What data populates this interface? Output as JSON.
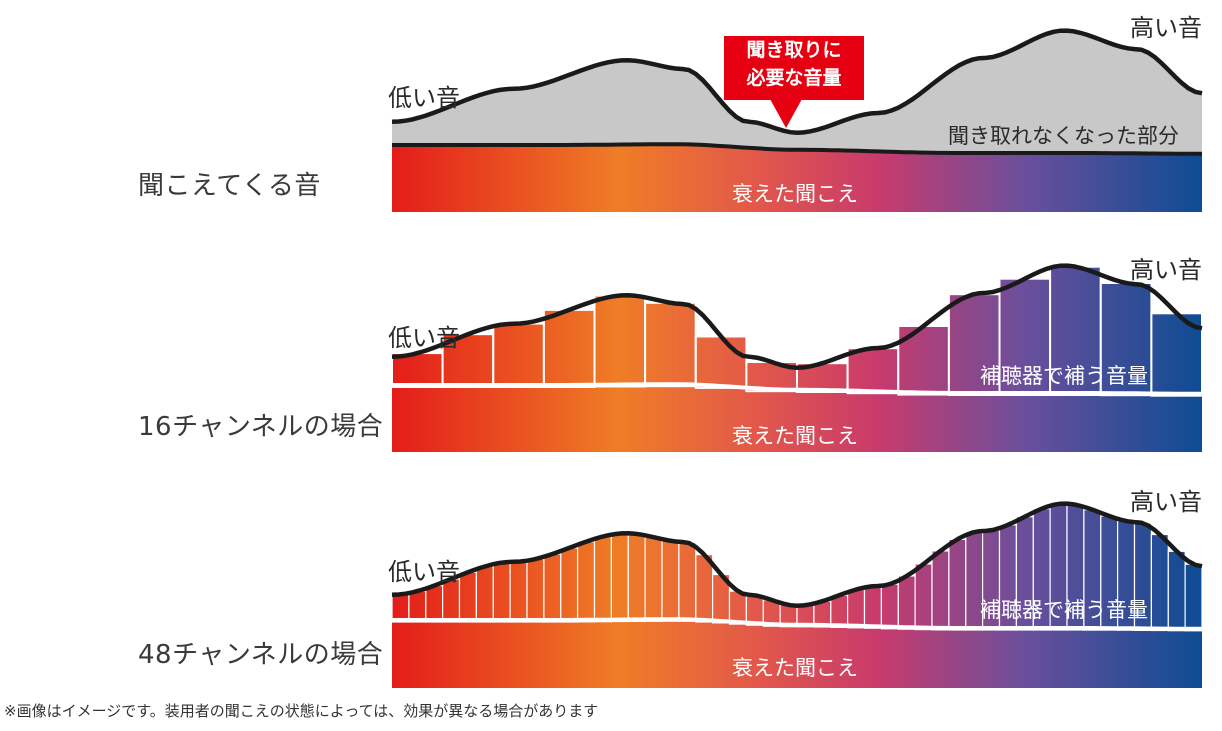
{
  "rows": [
    {
      "label": "聞こえてくる音",
      "low": "低い音",
      "high": "高い音",
      "hearing": "衰えた聞こえ",
      "lost": "聞き取れなくなった部分",
      "callout": [
        "聞き取りに",
        "必要な音量"
      ]
    },
    {
      "label": "16チャンネルの場合",
      "low": "低い音",
      "high": "高い音",
      "hearing": "衰えた聞こえ",
      "aid": "補聴器で補う音量",
      "channels": 16
    },
    {
      "label": "48チャンネルの場合",
      "low": "低い音",
      "high": "高い音",
      "hearing": "衰えた聞こえ",
      "aid": "補聴器で補う音量",
      "channels": 48
    }
  ],
  "footnote": "※画像はイメージです。装用者の聞こえの状態によっては、効果が異なる場合があります",
  "colors": {
    "red": "#e60012",
    "orange": "#ee7d26",
    "pink": "#e0405a",
    "purple": "#6a4a9a",
    "blue": "#0a4a93",
    "gray": "#c8c8c8",
    "curve": "#1a1a1a"
  }
}
